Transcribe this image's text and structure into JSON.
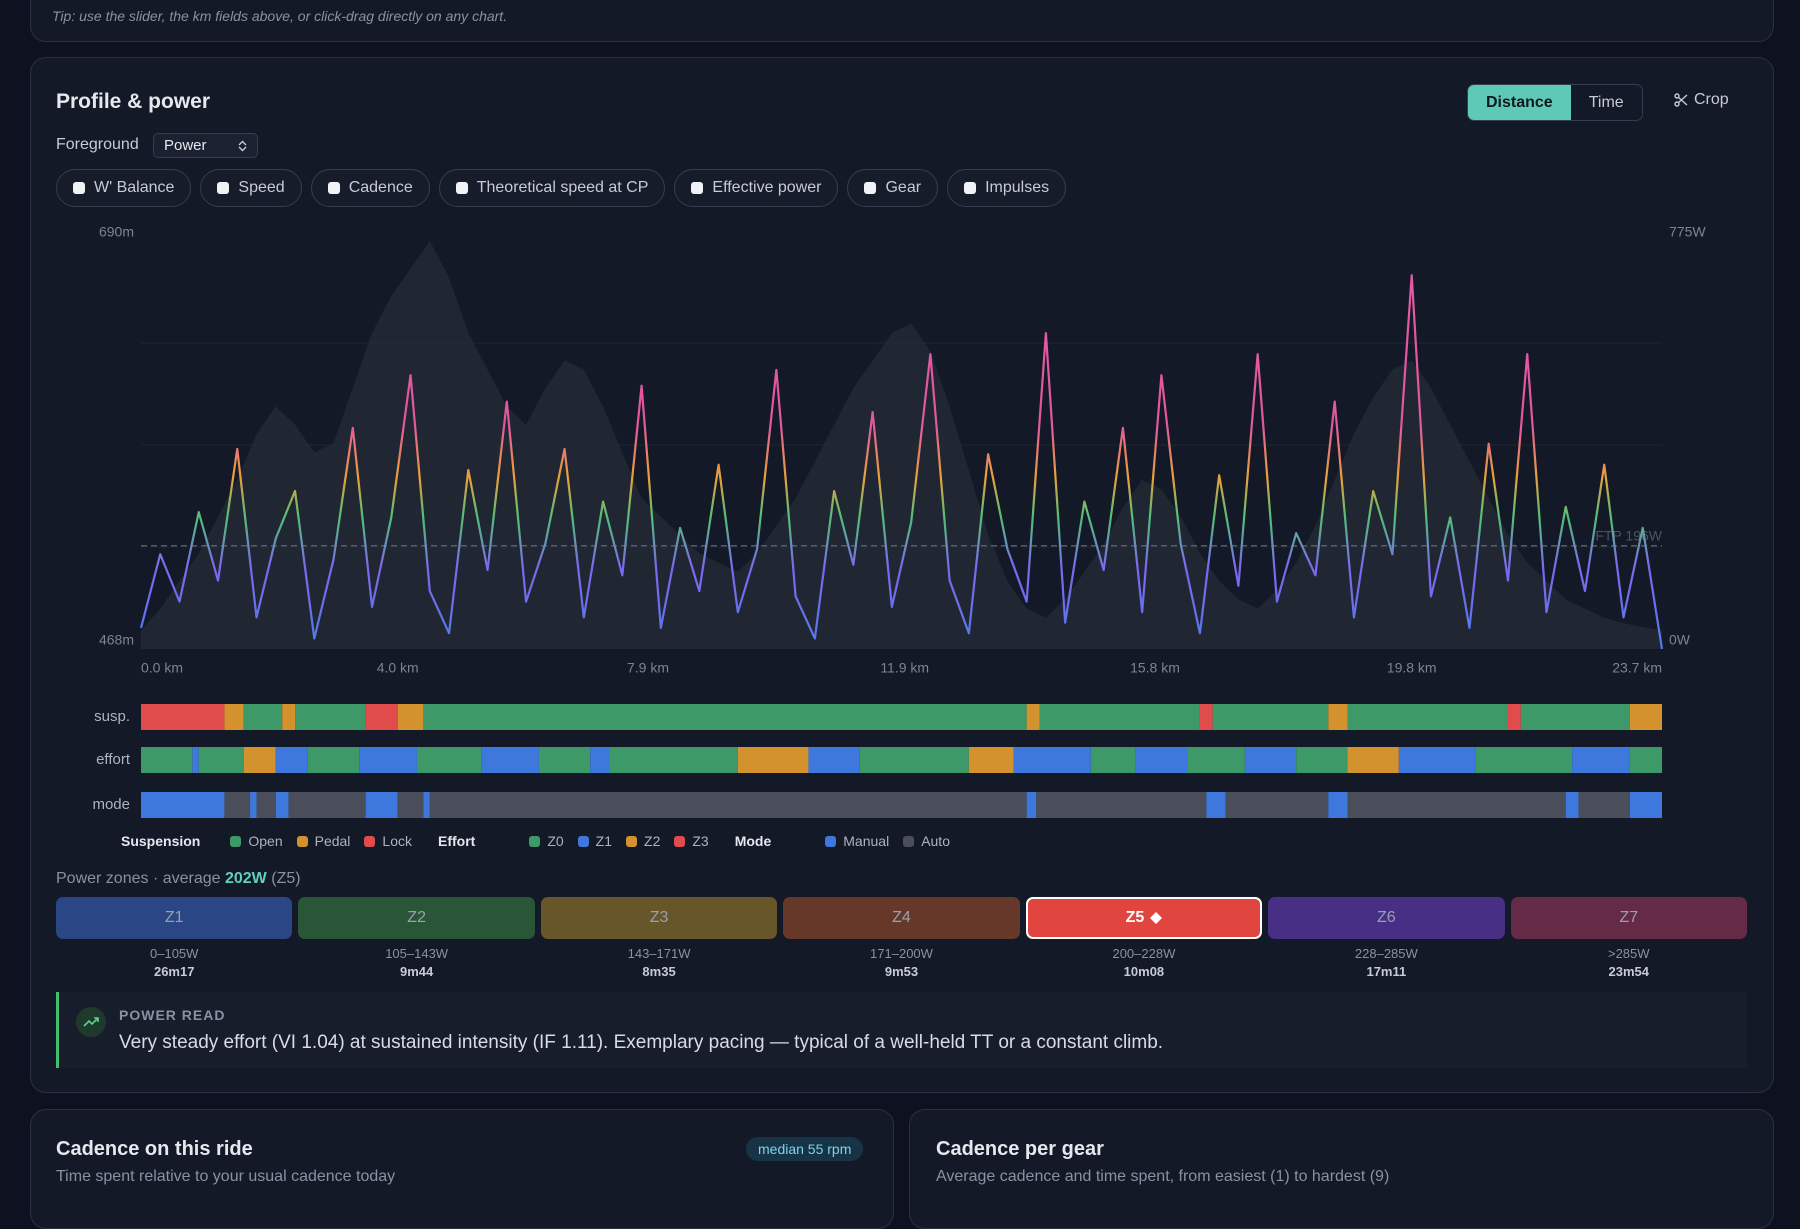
{
  "tip": "Tip: use the slider, the km fields above, or click-drag directly on any chart.",
  "card": {
    "title": "Profile & power",
    "toggle": [
      "Distance",
      "Time"
    ],
    "active_toggle": 0,
    "crop": "Crop",
    "foreground_label": "Foreground",
    "foreground_value": "Power",
    "options": [
      "W' Balance",
      "Speed",
      "Cadence",
      "Theoretical speed at CP",
      "Effective power",
      "Gear",
      "Impulses"
    ]
  },
  "chart_data": {
    "type": "line",
    "xlim": [
      0,
      23.7
    ],
    "xticks": [
      {
        "value": 0,
        "label": "0.0 km"
      },
      {
        "value": 4,
        "label": "4.0 km"
      },
      {
        "value": 7.9,
        "label": "7.9 km"
      },
      {
        "value": 11.9,
        "label": "11.9 km"
      },
      {
        "value": 15.8,
        "label": "15.8 km"
      },
      {
        "value": 19.8,
        "label": "19.8 km"
      },
      {
        "value": 23.7,
        "label": "23.7 km"
      }
    ],
    "ylim": [
      468,
      690
    ],
    "yticks": [
      {
        "value": 468,
        "label": "468m"
      },
      {
        "value": 690,
        "label": "690m"
      }
    ],
    "y2lim": [
      0,
      775
    ],
    "y2ticks": [
      {
        "value": 0,
        "label": "0W"
      },
      {
        "value": 775,
        "label": "775W"
      }
    ],
    "reference": {
      "value": 196,
      "label": "FTP 196W"
    },
    "x": [
      0,
      0.3,
      0.6,
      0.9,
      1.2,
      1.5,
      1.8,
      2.1,
      2.4,
      2.7,
      3,
      3.3,
      3.6,
      3.9,
      4.2,
      4.5,
      4.8,
      5.1,
      5.4,
      5.7,
      6,
      6.3,
      6.6,
      6.9,
      7.2,
      7.5,
      7.8,
      8.1,
      8.4,
      8.7,
      9,
      9.3,
      9.6,
      9.9,
      10.2,
      10.5,
      10.8,
      11.1,
      11.4,
      11.7,
      12,
      12.3,
      12.6,
      12.9,
      13.2,
      13.5,
      13.8,
      14.1,
      14.4,
      14.7,
      15,
      15.3,
      15.6,
      15.9,
      16.2,
      16.5,
      16.8,
      17.1,
      17.4,
      17.7,
      18,
      18.3,
      18.6,
      18.9,
      19.2,
      19.5,
      19.8,
      20.1,
      20.4,
      20.7,
      21,
      21.3,
      21.6,
      21.9,
      22.2,
      22.5,
      22.8,
      23.1,
      23.4,
      23.7
    ],
    "elevation": {
      "color": "#262b38",
      "values": [
        478,
        490,
        505,
        520,
        540,
        560,
        585,
        600,
        590,
        575,
        580,
        610,
        640,
        660,
        675,
        690,
        670,
        640,
        620,
        600,
        590,
        610,
        625,
        620,
        600,
        575,
        550,
        540,
        530,
        520,
        515,
        510,
        520,
        535,
        550,
        570,
        590,
        610,
        625,
        640,
        645,
        630,
        600,
        565,
        530,
        505,
        490,
        485,
        495,
        510,
        525,
        545,
        560,
        555,
        540,
        520,
        505,
        495,
        490,
        500,
        515,
        535,
        560,
        585,
        605,
        620,
        625,
        610,
        590,
        570,
        550,
        530,
        515,
        505,
        495,
        490,
        485,
        482,
        480,
        478
      ]
    },
    "power": {
      "axis": "y2",
      "values": [
        40,
        180,
        90,
        260,
        130,
        380,
        60,
        210,
        300,
        20,
        170,
        420,
        80,
        250,
        520,
        110,
        30,
        340,
        150,
        470,
        90,
        200,
        380,
        60,
        280,
        140,
        500,
        40,
        230,
        110,
        350,
        70,
        190,
        530,
        100,
        20,
        300,
        160,
        450,
        80,
        240,
        560,
        130,
        30,
        370,
        190,
        90,
        600,
        50,
        280,
        150,
        420,
        70,
        520,
        200,
        30,
        330,
        120,
        560,
        90,
        220,
        140,
        470,
        60,
        300,
        180,
        710,
        100,
        250,
        40,
        390,
        130,
        560,
        70,
        270,
        110,
        350,
        60,
        230,
        0
      ]
    }
  },
  "strips": [
    {
      "label": "susp.",
      "segments": [
        [
          0,
          1.3,
          "Lock"
        ],
        [
          1.3,
          1.6,
          "Pedal"
        ],
        [
          1.6,
          2.2,
          "Open"
        ],
        [
          2.2,
          2.4,
          "Pedal"
        ],
        [
          2.4,
          3.5,
          "Open"
        ],
        [
          3.5,
          4.0,
          "Lock"
        ],
        [
          4.0,
          4.4,
          "Pedal"
        ],
        [
          4.4,
          13.8,
          "Open"
        ],
        [
          13.8,
          14.0,
          "Pedal"
        ],
        [
          14.0,
          16.5,
          "Open"
        ],
        [
          16.5,
          16.7,
          "Lock"
        ],
        [
          16.7,
          18.5,
          "Open"
        ],
        [
          18.5,
          18.8,
          "Pedal"
        ],
        [
          18.8,
          21.3,
          "Open"
        ],
        [
          21.3,
          21.5,
          "Lock"
        ],
        [
          21.5,
          23.2,
          "Open"
        ],
        [
          23.2,
          23.7,
          "Pedal"
        ]
      ]
    },
    {
      "label": "effort",
      "segments": [
        [
          0,
          0.8,
          "Z0"
        ],
        [
          0.8,
          0.9,
          "Z1"
        ],
        [
          0.9,
          1.6,
          "Z0"
        ],
        [
          1.6,
          2.1,
          "Z2"
        ],
        [
          2.1,
          2.6,
          "Z1"
        ],
        [
          2.6,
          3.4,
          "Z0"
        ],
        [
          3.4,
          4.3,
          "Z1"
        ],
        [
          4.3,
          5.3,
          "Z0"
        ],
        [
          5.3,
          6.2,
          "Z1"
        ],
        [
          6.2,
          7.0,
          "Z0"
        ],
        [
          7.0,
          7.3,
          "Z1"
        ],
        [
          7.3,
          9.3,
          "Z0"
        ],
        [
          9.3,
          10.4,
          "Z2"
        ],
        [
          10.4,
          11.2,
          "Z1"
        ],
        [
          11.2,
          12.9,
          "Z0"
        ],
        [
          12.9,
          13.6,
          "Z2"
        ],
        [
          13.6,
          14.8,
          "Z1"
        ],
        [
          14.8,
          15.5,
          "Z0"
        ],
        [
          15.5,
          16.3,
          "Z1"
        ],
        [
          16.3,
          17.2,
          "Z0"
        ],
        [
          17.2,
          18.0,
          "Z1"
        ],
        [
          18.0,
          18.8,
          "Z0"
        ],
        [
          18.8,
          19.6,
          "Z2"
        ],
        [
          19.6,
          20.8,
          "Z1"
        ],
        [
          20.8,
          22.3,
          "Z0"
        ],
        [
          22.3,
          23.2,
          "Z1"
        ],
        [
          23.2,
          23.7,
          "Z0"
        ]
      ]
    },
    {
      "label": "mode",
      "segments": [
        [
          0,
          1.3,
          "Manual"
        ],
        [
          1.3,
          1.7,
          "Auto"
        ],
        [
          1.7,
          1.8,
          "Manual"
        ],
        [
          1.8,
          2.1,
          "Auto"
        ],
        [
          2.1,
          2.3,
          "Manual"
        ],
        [
          2.3,
          3.5,
          "Auto"
        ],
        [
          3.5,
          4.0,
          "Manual"
        ],
        [
          4.0,
          4.4,
          "Auto"
        ],
        [
          4.4,
          4.5,
          "Manual"
        ],
        [
          4.5,
          13.8,
          "Auto"
        ],
        [
          13.8,
          13.95,
          "Manual"
        ],
        [
          13.95,
          16.6,
          "Auto"
        ],
        [
          16.6,
          16.9,
          "Manual"
        ],
        [
          16.9,
          18.5,
          "Auto"
        ],
        [
          18.5,
          18.8,
          "Manual"
        ],
        [
          18.8,
          22.2,
          "Auto"
        ],
        [
          22.2,
          22.4,
          "Manual"
        ],
        [
          22.4,
          23.2,
          "Auto"
        ],
        [
          23.2,
          23.7,
          "Manual"
        ]
      ]
    }
  ],
  "legend": [
    {
      "title": "Suspension",
      "items": [
        {
          "name": "Open",
          "color": "#3d9a68"
        },
        {
          "name": "Pedal",
          "color": "#d4922e"
        },
        {
          "name": "Lock",
          "color": "#e04b4b"
        }
      ]
    },
    {
      "title": "Effort",
      "items": [
        {
          "name": "Z0",
          "color": "#3d9a68"
        },
        {
          "name": "Z1",
          "color": "#3f78dc"
        },
        {
          "name": "Z2",
          "color": "#d4922e"
        },
        {
          "name": "Z3",
          "color": "#e04b4b"
        }
      ]
    },
    {
      "title": "Mode",
      "items": [
        {
          "name": "Manual",
          "color": "#3f78dc"
        },
        {
          "name": "Auto",
          "color": "#4a4e5a"
        }
      ]
    }
  ],
  "zones": {
    "label": "Power zones · average",
    "average": "202W",
    "average_zone": "(Z5)",
    "selected": 4,
    "items": [
      {
        "name": "Z1",
        "range": "0–105W",
        "time": "26m17",
        "color": "#2a4684"
      },
      {
        "name": "Z2",
        "range": "105–143W",
        "time": "9m44",
        "color": "#2a5638"
      },
      {
        "name": "Z3",
        "range": "143–171W",
        "time": "8m35",
        "color": "#66562a"
      },
      {
        "name": "Z4",
        "range": "171–200W",
        "time": "9m53",
        "color": "#66382a"
      },
      {
        "name": "Z5",
        "range": "200–228W",
        "time": "10m08",
        "color": "#e0463f"
      },
      {
        "name": "Z6",
        "range": "228–285W",
        "time": "17m11",
        "color": "#472f86"
      },
      {
        "name": "Z7",
        "range": ">285W",
        "time": "23m54",
        "color": "#642a46"
      }
    ]
  },
  "power_read": {
    "title": "POWER READ",
    "text": "Very steady effort (VI 1.04) at sustained intensity (IF 1.11). Exemplary pacing — typical of a well-held TT or a constant climb."
  },
  "cards": [
    {
      "title": "Cadence on this ride",
      "subtitle": "Time spent relative to your usual cadence today",
      "badge": "median 55 rpm"
    },
    {
      "title": "Cadence per gear",
      "subtitle": "Average cadence and time spent, from easiest (1) to hardest (9)"
    }
  ]
}
